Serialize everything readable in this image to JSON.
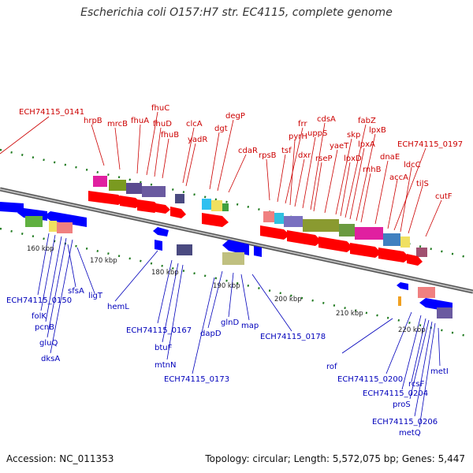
{
  "title": "Escherichia coli O157:H7 str. EC4115, complete genome",
  "footer": {
    "accession": "Accession: NC_011353",
    "summary": "Topology: circular; Length: 5,572,075 bp; Genes: 5,447"
  },
  "scale_labels": [
    "160 kbp",
    "170 kbp",
    "180 kbp",
    "190 kbp",
    "200 kbp",
    "210 kbp",
    "220 kbp"
  ],
  "top_gene_labels": [
    "ECH74115_0141",
    "hrpB",
    "mrcB",
    "fhuA",
    "fhuC",
    "fhuD",
    "fhuB",
    "clcA",
    "yadR",
    "dgt",
    "degP",
    "cdaR",
    "rpsB",
    "tsf",
    "frr",
    "pyrH",
    "dxr",
    "uppS",
    "cdsA",
    "rseP",
    "yaeT",
    "skp",
    "lpxD",
    "fabZ",
    "lpxA",
    "lpxB",
    "rnhB",
    "dnaE",
    "accA",
    "ECH74115_0197",
    "ldcC",
    "tilS",
    "cutF"
  ],
  "bottom_gene_labels": [
    "ECH74115_0150",
    "folK",
    "pcnB",
    "gluQ",
    "dksA",
    "sfsA",
    "ligT",
    "hemL",
    "ECH74115_0167",
    "btuF",
    "mtnN",
    "ECH74115_0173",
    "dapD",
    "glnD",
    "map",
    "ECH74115_0178",
    "rof",
    "ECH74115_0200",
    "ECH74115_0204",
    "rcsF",
    "proS",
    "metI",
    "ECH74115_0206",
    "metQ"
  ],
  "colors": {
    "backbone": "#888888",
    "top_label": "#cc0000",
    "bottom_label": "#0000bb",
    "forward_gene": "#ff0000",
    "reverse_gene": "#0000ff",
    "gc_tick": "#228822"
  }
}
